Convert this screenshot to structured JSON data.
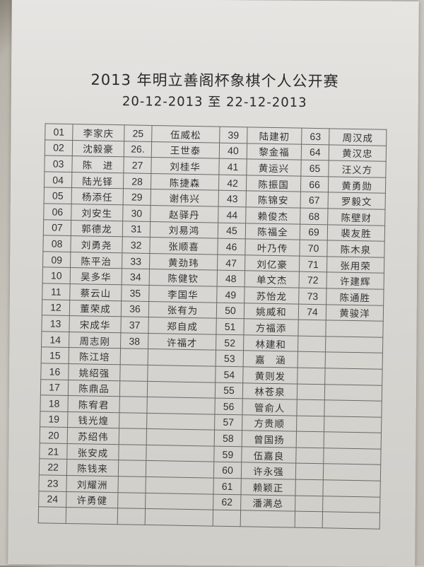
{
  "title": "2013 年明立善阁杯象棋个人公开赛",
  "date_range": "20-12-2013 至 22-12-2013",
  "columns": [
    [
      {
        "no": "01",
        "name": "李家庆"
      },
      {
        "no": "02",
        "name": "沈毅豪"
      },
      {
        "no": "03",
        "name": "陈　进"
      },
      {
        "no": "04",
        "name": "陆光铎"
      },
      {
        "no": "05",
        "name": "杨添任"
      },
      {
        "no": "06",
        "name": "刘安生"
      },
      {
        "no": "07",
        "name": "郭德龙"
      },
      {
        "no": "08",
        "name": "刘勇尧"
      },
      {
        "no": "09",
        "name": "陈平治"
      },
      {
        "no": "10",
        "name": "吴多华"
      },
      {
        "no": "11",
        "name": "蔡云山"
      },
      {
        "no": "12",
        "name": "董荣成"
      },
      {
        "no": "13",
        "name": "宋成华"
      },
      {
        "no": "14",
        "name": "周志刚"
      },
      {
        "no": "15",
        "name": "陈江培"
      },
      {
        "no": "16",
        "name": "姚绍强"
      },
      {
        "no": "17",
        "name": "陈鼎品"
      },
      {
        "no": "18",
        "name": "陈宥君"
      },
      {
        "no": "19",
        "name": "钱光煌"
      },
      {
        "no": "20",
        "name": "苏绍伟"
      },
      {
        "no": "21",
        "name": "张安成"
      },
      {
        "no": "22",
        "name": "陈钱来"
      },
      {
        "no": "23",
        "name": "刘耀洲"
      },
      {
        "no": "24",
        "name": "许勇健"
      }
    ],
    [
      {
        "no": "25",
        "name": "伍威松"
      },
      {
        "no": "26.",
        "name": "王世泰"
      },
      {
        "no": "27",
        "name": "刘桂华"
      },
      {
        "no": "28",
        "name": "陈捷森"
      },
      {
        "no": "29",
        "name": "谢伟兴"
      },
      {
        "no": "30",
        "name": "赵驿丹"
      },
      {
        "no": "31",
        "name": "刘易鸿"
      },
      {
        "no": "32",
        "name": "张顺喜"
      },
      {
        "no": "33",
        "name": "黄劲玮"
      },
      {
        "no": "34",
        "name": "陈健钦"
      },
      {
        "no": "35",
        "name": "李国华"
      },
      {
        "no": "36",
        "name": "张有为"
      },
      {
        "no": "37",
        "name": "郑自成"
      },
      {
        "no": "38",
        "name": "许福才"
      }
    ],
    [
      {
        "no": "39",
        "name": "陆建初"
      },
      {
        "no": "40",
        "name": "黎金福"
      },
      {
        "no": "41",
        "name": "黄运兴"
      },
      {
        "no": "42",
        "name": "陈振国"
      },
      {
        "no": "43",
        "name": "陈锦安"
      },
      {
        "no": "44",
        "name": "赖俊杰"
      },
      {
        "no": "45",
        "name": "陈福全"
      },
      {
        "no": "46",
        "name": "叶乃传"
      },
      {
        "no": "47",
        "name": "刘亿豪"
      },
      {
        "no": "48",
        "name": "单文杰"
      },
      {
        "no": "49",
        "name": "苏怡龙"
      },
      {
        "no": "50",
        "name": "姚威和"
      },
      {
        "no": "51",
        "name": "方福添"
      },
      {
        "no": "52",
        "name": "林建和"
      },
      {
        "no": "53",
        "name": "嘉　涵"
      },
      {
        "no": "54",
        "name": "黄则发"
      },
      {
        "no": "55",
        "name": "林苍泉"
      },
      {
        "no": "56",
        "name": "管俞人"
      },
      {
        "no": "57",
        "name": "方贵顺"
      },
      {
        "no": "58",
        "name": "曾国扬"
      },
      {
        "no": "59",
        "name": "伍嘉良"
      },
      {
        "no": "60",
        "name": "许永强"
      },
      {
        "no": "61",
        "name": "赖颖正"
      },
      {
        "no": "62",
        "name": "潘满总"
      }
    ],
    [
      {
        "no": "63",
        "name": "周汉成"
      },
      {
        "no": "64",
        "name": "黄汉忠"
      },
      {
        "no": "65",
        "name": "汪义方"
      },
      {
        "no": "66",
        "name": "黄勇勋"
      },
      {
        "no": "67",
        "name": "罗毅文"
      },
      {
        "no": "68",
        "name": "陈壁财"
      },
      {
        "no": "69",
        "name": "裴友胜"
      },
      {
        "no": "70",
        "name": "陈木泉"
      },
      {
        "no": "71",
        "name": "张用荣"
      },
      {
        "no": "72",
        "name": "许建辉"
      },
      {
        "no": "73",
        "name": "陈通胜"
      },
      {
        "no": "74",
        "name": "黄骏洋"
      }
    ]
  ]
}
